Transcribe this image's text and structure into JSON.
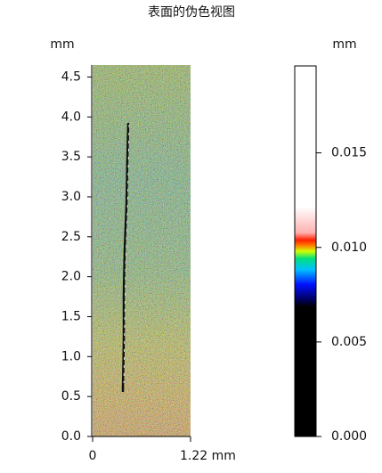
{
  "chart_data": {
    "type": "image",
    "title": "表面的伪色视图",
    "y_unit": "mm",
    "xlim": [
      0,
      1.22
    ],
    "xticks": [
      0,
      {
        "value": 1.22,
        "label": "1.22 mm"
      }
    ],
    "ylim": [
      0,
      4.65
    ],
    "yticks": [
      {
        "value": 0,
        "label": "0.0"
      },
      0.5,
      {
        "value": 1,
        "label": "1.0"
      },
      1.5,
      {
        "value": 2,
        "label": "2.0"
      },
      2.5,
      {
        "value": 3,
        "label": "3.0"
      },
      3.5,
      {
        "value": 4,
        "label": "4.0"
      },
      4.5
    ],
    "colorbar": {
      "label": "mm",
      "lim": [
        0,
        0.0196
      ],
      "ticks": [
        {
          "value": 0,
          "label": "0.000"
        },
        0.005,
        {
          "value": 0.01,
          "label": "0.010"
        },
        0.015
      ]
    }
  }
}
